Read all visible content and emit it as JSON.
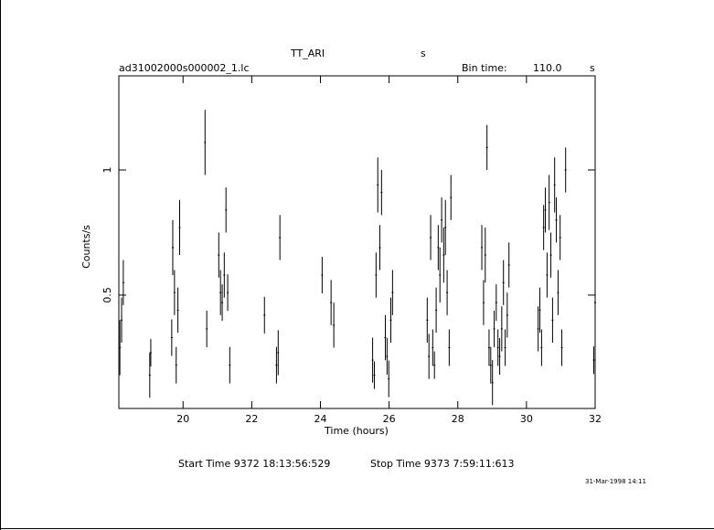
{
  "chart_data": {
    "type": "errorbar",
    "title": "TT_ARI",
    "title_unit": "s",
    "file": "ad31002000s000002_1.lc",
    "bin_label": "Bin time:",
    "bin_value": "110.0",
    "bin_unit": "s",
    "xlabel": "Time (hours)",
    "ylabel": "Counts/s",
    "start_time": "Start Time  9372  18:13:56:529",
    "stop_time": "Stop Time  9373  7:59:11:613",
    "date": "31-Mar-1998 14:11",
    "xlim": [
      18.13,
      32
    ],
    "ylim": [
      0.047,
      1.376
    ],
    "xticks": [
      20,
      22,
      24,
      26,
      28,
      30,
      32
    ],
    "yticks": [
      0.5,
      1
    ],
    "color": "#000000",
    "x": [
      18.16,
      18.21,
      18.26,
      19.03,
      19.06,
      19.67,
      19.7,
      19.75,
      19.8,
      19.85,
      19.9,
      20.64,
      20.69,
      21.04,
      21.09,
      21.14,
      21.2,
      21.25,
      21.3,
      21.36,
      22.37,
      22.72,
      22.77,
      22.82,
      24.05,
      24.31,
      24.39,
      25.52,
      25.57,
      25.62,
      25.67,
      25.73,
      25.78,
      25.89,
      25.94,
      25.99,
      26.05,
      26.1,
      27.11,
      27.16,
      27.21,
      27.27,
      27.32,
      27.37,
      27.43,
      27.48,
      27.53,
      27.59,
      27.64,
      27.69,
      27.75,
      27.8,
      28.7,
      28.75,
      28.8,
      28.85,
      28.91,
      28.96,
      29.01,
      29.06,
      29.12,
      29.17,
      29.22,
      29.28,
      29.33,
      29.38,
      29.44,
      29.49,
      30.34,
      30.39,
      30.44,
      30.5,
      30.55,
      30.6,
      30.66,
      30.71,
      30.76,
      30.82,
      30.87,
      30.92,
      30.98,
      31.03,
      31.14,
      31.96,
      32.0
    ],
    "values": [
      0.29,
      0.4,
      0.55,
      0.18,
      0.27,
      0.33,
      0.69,
      0.51,
      0.22,
      0.44,
      0.77,
      1.11,
      0.365,
      0.66,
      0.51,
      0.47,
      0.58,
      0.84,
      0.51,
      0.22,
      0.42,
      0.22,
      0.27,
      0.73,
      0.58,
      0.47,
      0.38,
      0.24,
      0.18,
      0.58,
      0.94,
      0.69,
      0.91,
      0.33,
      0.255,
      0.165,
      0.4,
      0.51,
      0.4,
      0.255,
      0.73,
      0.29,
      0.22,
      0.44,
      0.69,
      0.58,
      0.8,
      0.66,
      0.77,
      0.51,
      0.29,
      0.89,
      0.69,
      0.47,
      0.66,
      1.09,
      0.29,
      0.22,
      0.15,
      0.365,
      0.47,
      0.29,
      0.255,
      0.365,
      0.55,
      0.29,
      0.42,
      0.62,
      0.365,
      0.44,
      0.29,
      0.77,
      0.84,
      0.58,
      0.87,
      0.66,
      0.4,
      0.94,
      0.8,
      0.51,
      0.73,
      0.29,
      1.0,
      0.24,
      0.47
    ],
    "errors": [
      0.11,
      0.09,
      0.09,
      0.09,
      0.055,
      0.073,
      0.11,
      0.09,
      0.073,
      0.09,
      0.11,
      0.13,
      0.073,
      0.09,
      0.09,
      0.073,
      0.09,
      0.09,
      0.073,
      0.073,
      0.073,
      0.073,
      0.09,
      0.09,
      0.073,
      0.09,
      0.09,
      0.09,
      0.055,
      0.09,
      0.11,
      0.09,
      0.09,
      0.09,
      0.073,
      0.073,
      0.09,
      0.09,
      0.09,
      0.09,
      0.09,
      0.073,
      0.055,
      0.09,
      0.09,
      0.11,
      0.09,
      0.11,
      0.11,
      0.09,
      0.073,
      0.09,
      0.09,
      0.09,
      0.11,
      0.09,
      0.073,
      0.073,
      0.09,
      0.073,
      0.073,
      0.073,
      0.073,
      0.09,
      0.09,
      0.073,
      0.09,
      0.09,
      0.09,
      0.09,
      0.073,
      0.09,
      0.09,
      0.09,
      0.11,
      0.09,
      0.09,
      0.11,
      0.09,
      0.09,
      0.09,
      0.073,
      0.09,
      0.055,
      0.09
    ]
  }
}
